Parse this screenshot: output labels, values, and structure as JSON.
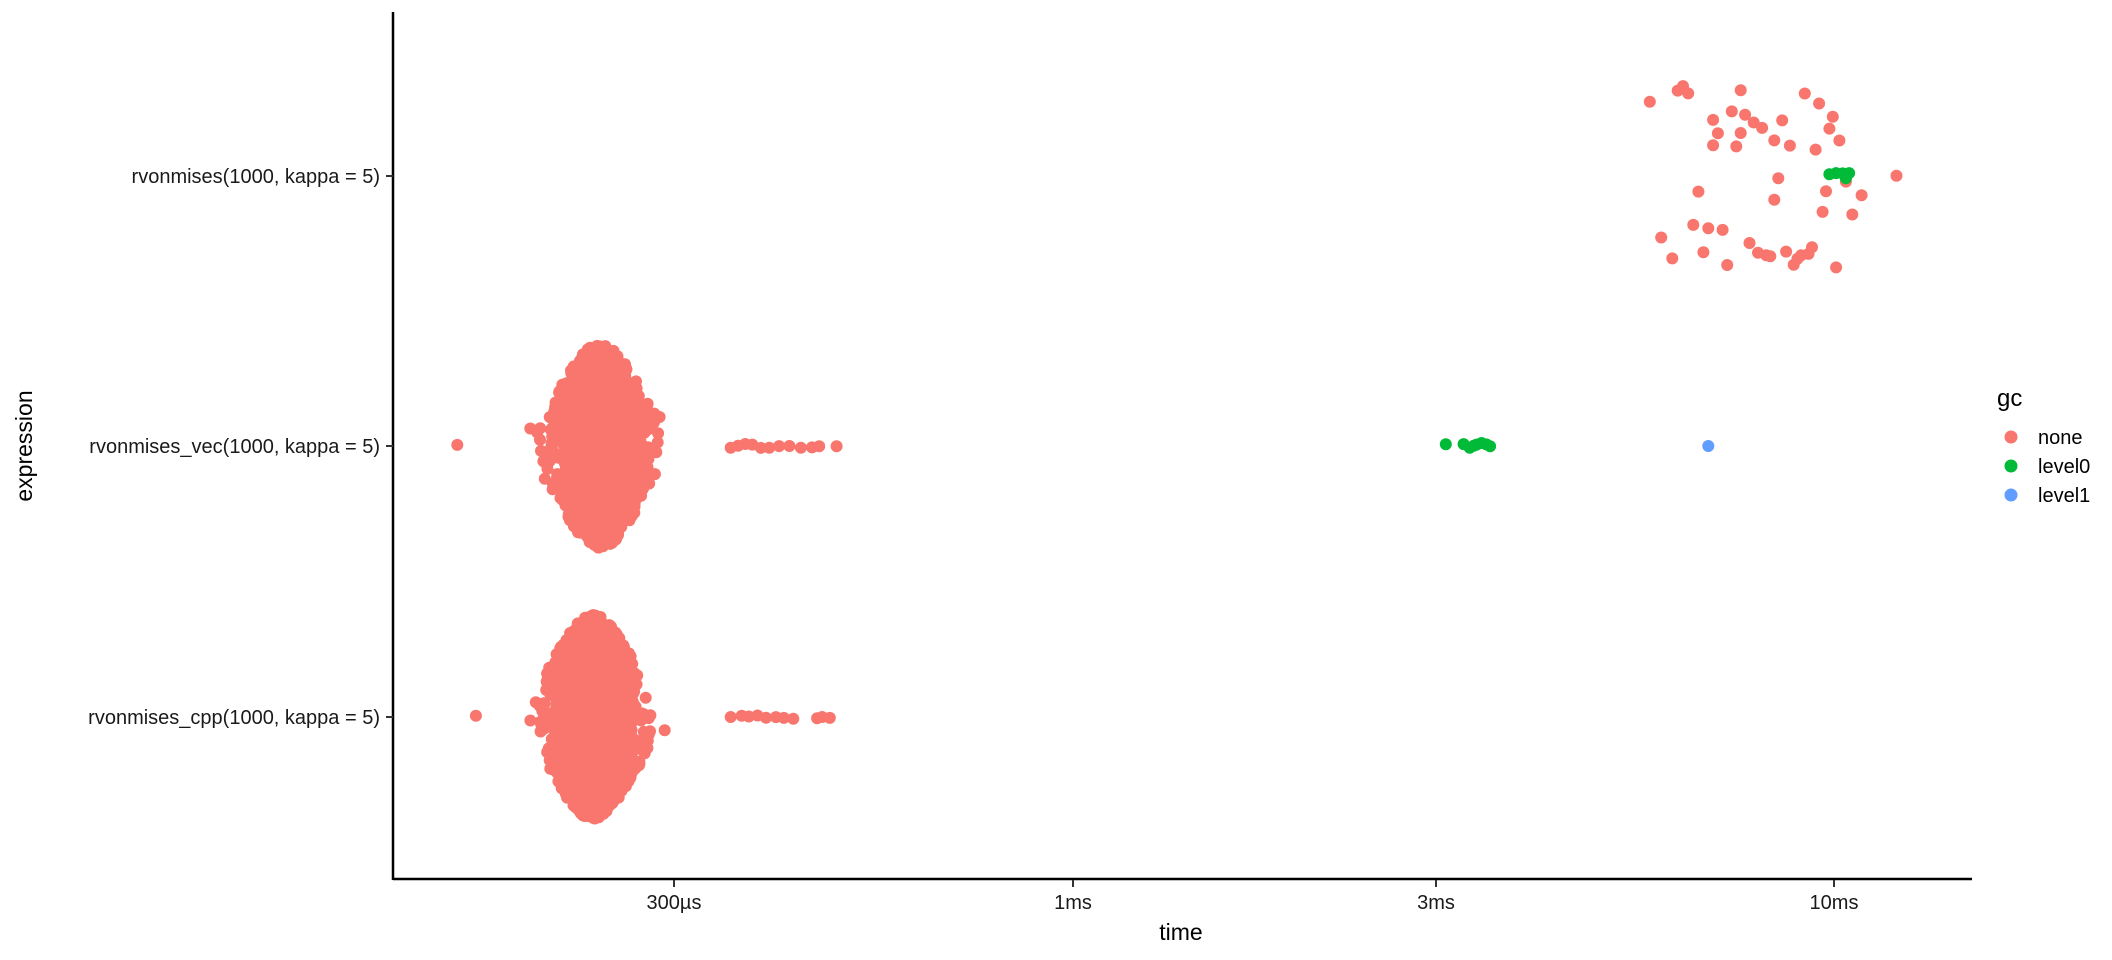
{
  "chart_data": {
    "type": "scatter",
    "subtype": "beeswarm",
    "title": "",
    "xlabel": "time",
    "ylabel": "expression",
    "x_scale": "log",
    "x_unit": "seconds",
    "xlim": [
      0.00011,
      0.019
    ],
    "x_ticks": [
      {
        "value": 0.0003,
        "label": "300µs"
      },
      {
        "value": 0.001,
        "label": "1ms"
      },
      {
        "value": 0.003,
        "label": "3ms"
      },
      {
        "value": 0.01,
        "label": "10ms"
      }
    ],
    "categories": [
      "rvonmises(1000, kappa = 5)",
      "rvonmises_vec(1000, kappa = 5)",
      "rvonmises_cpp(1000, kappa = 5)"
    ],
    "grid": false,
    "legend": {
      "title": "gc",
      "position": "right",
      "items": [
        {
          "name": "none",
          "color": "#F8766D"
        },
        {
          "name": "level0",
          "color": "#00BA38"
        },
        {
          "name": "level1",
          "color": "#619CFF"
        }
      ]
    },
    "series": [
      {
        "name": "none",
        "color": "#F8766D",
        "groups": [
          {
            "category": "rvonmises(1000, kappa = 5)",
            "x": [
              0.0057,
              0.0059,
              0.0061,
              0.0062,
              0.0063,
              0.0064,
              0.0065,
              0.0066,
              0.0067,
              0.0068,
              0.0069,
              0.0069,
              0.007,
              0.0071,
              0.0072,
              0.0073,
              0.0074,
              0.0075,
              0.0075,
              0.0076,
              0.0077,
              0.0078,
              0.0079,
              0.008,
              0.0081,
              0.0082,
              0.0083,
              0.0083,
              0.0084,
              0.0085,
              0.0086,
              0.0087,
              0.0088,
              0.0089,
              0.009,
              0.0091,
              0.0092,
              0.0093,
              0.0094,
              0.0095,
              0.0096,
              0.0097,
              0.0098,
              0.0099,
              0.01,
              0.0101,
              0.0103,
              0.0105,
              0.0108,
              0.012
            ],
            "n": 50
          },
          {
            "category": "rvonmises_vec(1000, kappa = 5)",
            "median": 0.00024,
            "spread_range": [
              0.000195,
              0.0003
            ],
            "outliers": [
              0.000156,
              0.000356,
              0.000364,
              0.000372,
              0.00038,
              0.00039,
              0.0004,
              0.000412,
              0.000425,
              0.00044,
              0.000455,
              0.000465,
              0.00049
            ],
            "n": 5000
          },
          {
            "category": "rvonmises_cpp(1000, kappa = 5)",
            "median": 0.000235,
            "spread_range": [
              0.000185,
              0.000295
            ],
            "outliers": [
              0.000165,
              0.000356,
              0.000368,
              0.000376,
              0.000386,
              0.000396,
              0.000408,
              0.000418,
              0.00043,
              0.000462,
              0.000469,
              0.00048
            ],
            "n": 5000
          }
        ]
      },
      {
        "name": "level0",
        "color": "#00BA38",
        "groups": [
          {
            "category": "rvonmises(1000, kappa = 5)",
            "x": [
              0.0098,
              0.01,
              0.0102,
              0.0103,
              0.0104
            ]
          },
          {
            "category": "rvonmises_vec(1000, kappa = 5)",
            "x": [
              0.00308,
              0.00325,
              0.00331,
              0.00335,
              0.00338,
              0.00343,
              0.00348,
              0.00352
            ]
          }
        ]
      },
      {
        "name": "level1",
        "color": "#619CFF",
        "groups": [
          {
            "category": "rvonmises_vec(1000, kappa = 5)",
            "x": [
              0.0068
            ]
          }
        ]
      }
    ]
  }
}
